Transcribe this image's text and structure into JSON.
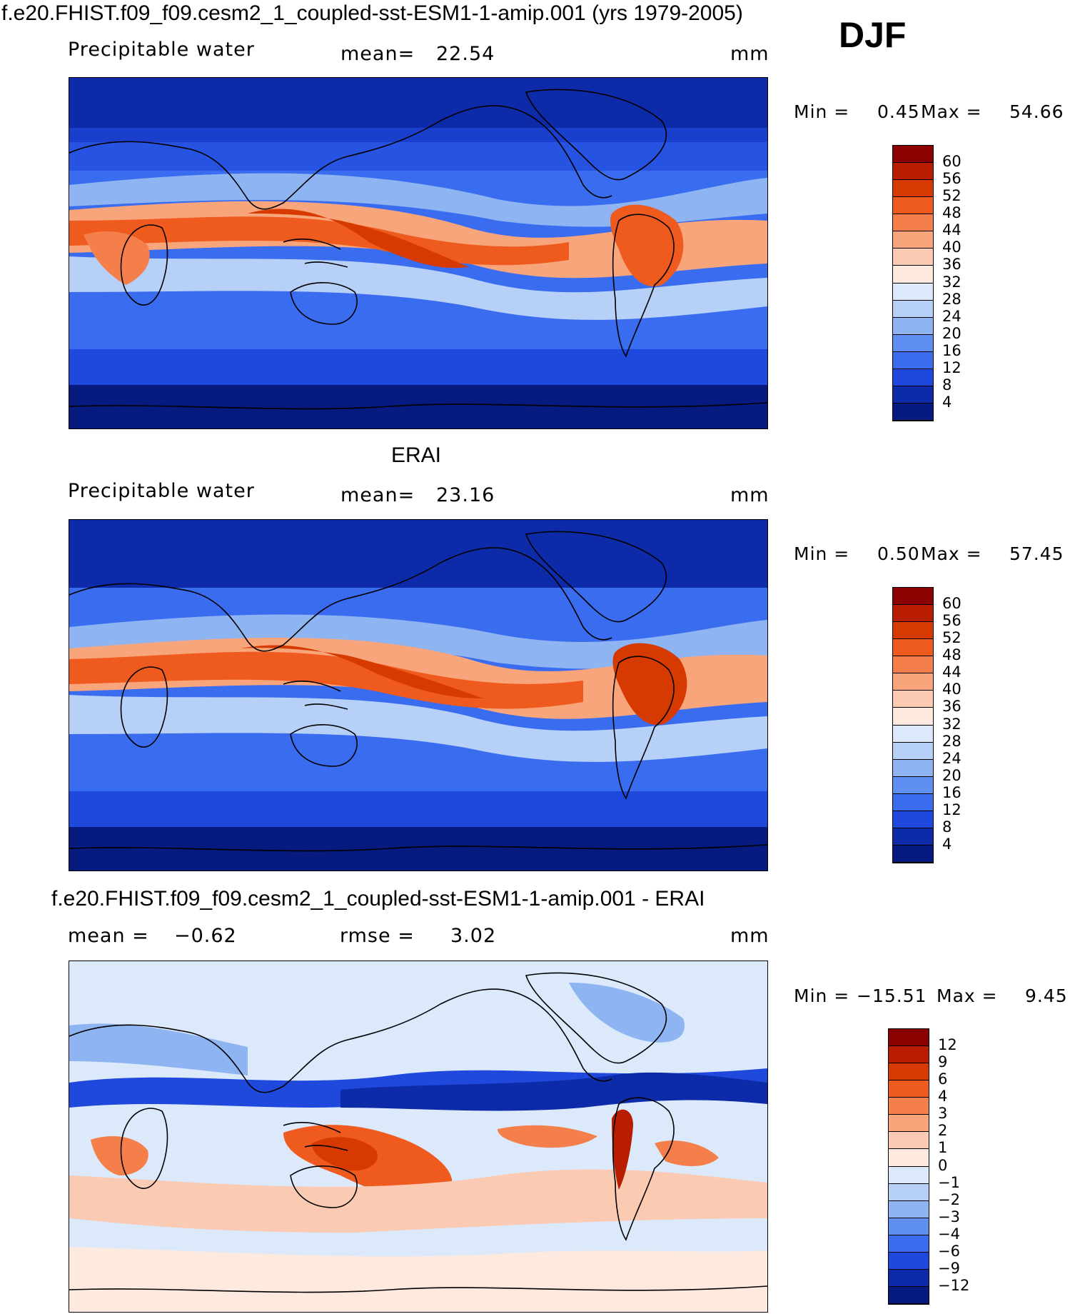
{
  "header": {
    "title": "f.e20.FHIST.f09_f09.cesm2_1_coupled-sst-ESM1-1-amip.001 (yrs 1979-2005)",
    "season": "DJF"
  },
  "panels": [
    {
      "title": "",
      "variable": "Precipitable water",
      "mean_label": "mean=",
      "mean_value": "22.54",
      "units": "mm",
      "min_label": "Min =",
      "min_value": "0.45",
      "max_label": "Max =",
      "max_value": "54.66",
      "levels": [
        "60",
        "56",
        "52",
        "48",
        "44",
        "40",
        "36",
        "32",
        "28",
        "24",
        "20",
        "16",
        "12",
        "8",
        "4"
      ],
      "colors": [
        "#8b0000",
        "#b81d00",
        "#d63a00",
        "#ef5a1f",
        "#f57f4a",
        "#f9a57c",
        "#fbcab2",
        "#fde9dd",
        "#dbe9fb",
        "#b6d0f7",
        "#8eb4f2",
        "#5f8ff0",
        "#3a6cf0",
        "#1f48dc",
        "#0d2aa8",
        "#061a80"
      ]
    },
    {
      "title": "ERAI",
      "variable": "Precipitable water",
      "mean_label": "mean=",
      "mean_value": "23.16",
      "units": "mm",
      "min_label": "Min =",
      "min_value": "0.50",
      "max_label": "Max =",
      "max_value": "57.45",
      "levels": [
        "60",
        "56",
        "52",
        "48",
        "44",
        "40",
        "36",
        "32",
        "28",
        "24",
        "20",
        "16",
        "12",
        "8",
        "4"
      ],
      "colors": [
        "#8b0000",
        "#b81d00",
        "#d63a00",
        "#ef5a1f",
        "#f57f4a",
        "#f9a57c",
        "#fbcab2",
        "#fde9dd",
        "#dbe9fb",
        "#b6d0f7",
        "#8eb4f2",
        "#5f8ff0",
        "#3a6cf0",
        "#1f48dc",
        "#0d2aa8",
        "#061a80"
      ]
    },
    {
      "title": "f.e20.FHIST.f09_f09.cesm2_1_coupled-sst-ESM1-1-amip.001 - ERAI",
      "mean_label": "mean =",
      "mean_value": "−0.62",
      "rmse_label": "rmse =",
      "rmse_value": "3.02",
      "units": "mm",
      "min_label": "Min =",
      "min_value": "−15.51",
      "max_label": "Max =",
      "max_value": "9.45",
      "levels": [
        "12",
        "9",
        "6",
        "4",
        "3",
        "2",
        "1",
        "0",
        "−1",
        "−2",
        "−3",
        "−4",
        "−6",
        "−9",
        "−12"
      ],
      "colors": [
        "#8b0000",
        "#b81d00",
        "#d63a00",
        "#ef5a1f",
        "#f57f4a",
        "#f9a57c",
        "#fbcab2",
        "#fde9dd",
        "#dbe9fb",
        "#b6d0f7",
        "#8eb4f2",
        "#5f8ff0",
        "#3a6cf0",
        "#1f48dc",
        "#0d2aa8",
        "#061a80"
      ]
    }
  ]
}
